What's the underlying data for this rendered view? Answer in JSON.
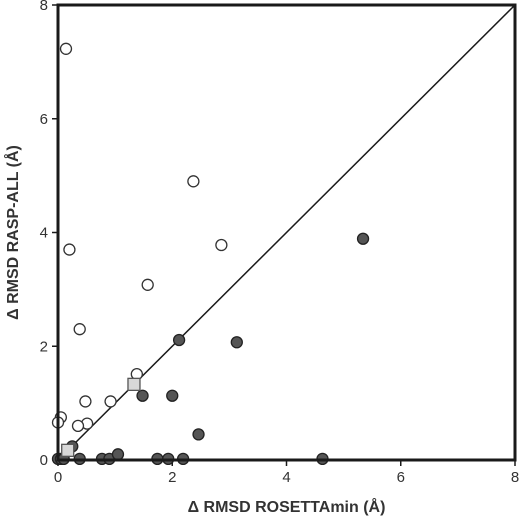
{
  "chart_data": {
    "type": "scatter",
    "title": "",
    "xlabel": "Δ RMSD ROSETTAmin (Å)",
    "ylabel": "Δ RMSD RASP-ALL (Å)",
    "xlim": [
      0,
      8
    ],
    "ylim": [
      0,
      8
    ],
    "xticks": [
      "0",
      "2",
      "4",
      "6",
      "8"
    ],
    "yticks": [
      "0",
      "2",
      "4",
      "6",
      "8"
    ],
    "grid": false,
    "legend": "none",
    "reference_line": {
      "x": [
        0,
        8
      ],
      "y": [
        0,
        8
      ]
    },
    "series": [
      {
        "marker": "circle-open",
        "color": "#ffffff",
        "stroke": "#333333",
        "x": [
          0.14,
          0.2,
          2.37,
          2.86,
          1.57,
          0.38,
          0.48,
          0.92,
          1.38,
          0.51,
          0.35,
          0.05,
          0.0
        ],
        "y": [
          7.23,
          3.7,
          4.9,
          3.78,
          3.08,
          2.3,
          1.03,
          1.03,
          1.51,
          0.64,
          0.6,
          0.75,
          0.66
        ]
      },
      {
        "marker": "circle-filled",
        "color": "#555555",
        "stroke": "#222222",
        "x": [
          5.34,
          2.12,
          3.13,
          1.48,
          2.0,
          2.46,
          0.25,
          0.0,
          0.05,
          0.1,
          0.38,
          0.77,
          0.9,
          1.05,
          1.74,
          1.93,
          2.19,
          4.63
        ],
        "y": [
          3.89,
          2.11,
          2.07,
          1.13,
          1.13,
          0.45,
          0.24,
          0.02,
          0.02,
          0.02,
          0.02,
          0.02,
          0.02,
          0.1,
          0.02,
          0.02,
          0.02,
          0.02
        ]
      },
      {
        "marker": "square",
        "color": "#d8d8d8",
        "stroke": "#555555",
        "x": [
          1.33,
          0.17
        ],
        "y": [
          1.33,
          0.17
        ]
      }
    ]
  }
}
